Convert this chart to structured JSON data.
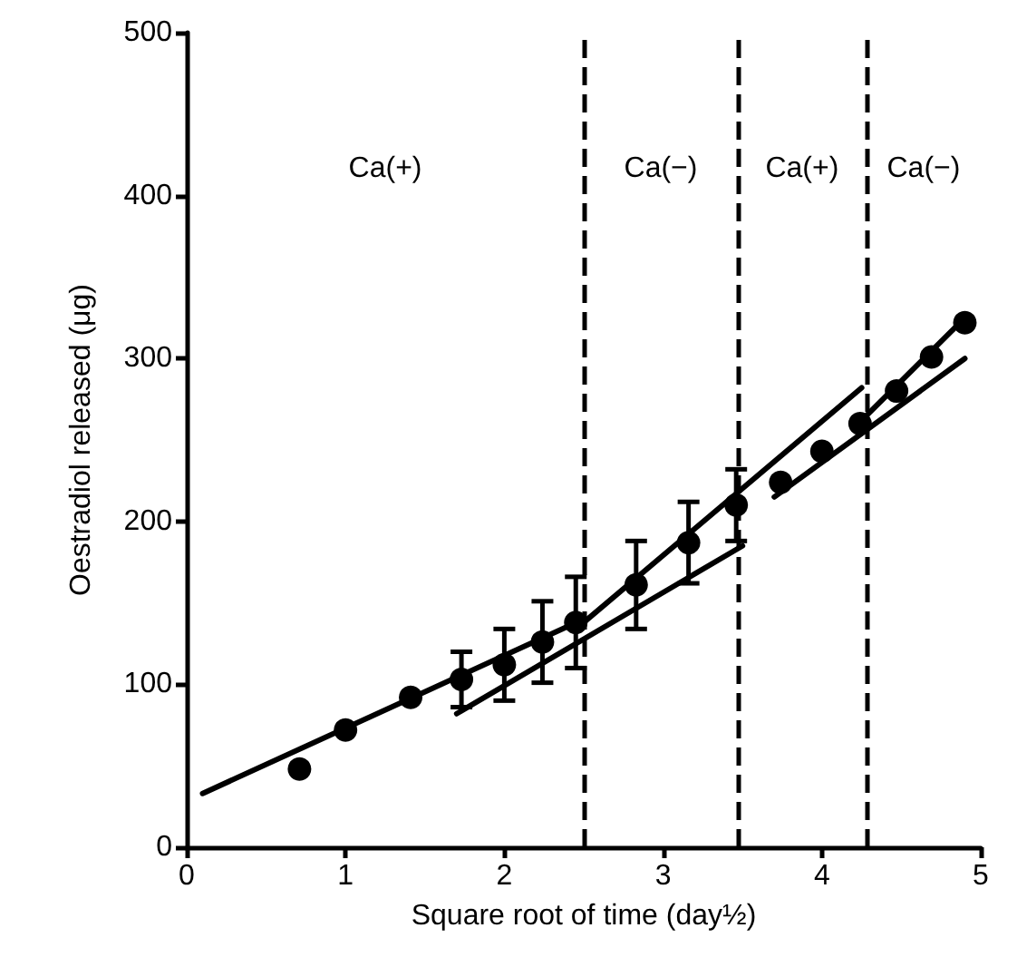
{
  "chart_data": {
    "type": "scatter",
    "xlabel": "Square root of time (day½)",
    "ylabel": "Oestradiol released (μg)",
    "xlim": [
      0,
      5
    ],
    "xticks": [
      0,
      1,
      2,
      3,
      4,
      5
    ],
    "ylim": [
      0,
      500
    ],
    "yticks": [
      0,
      100,
      200,
      300,
      400,
      500
    ],
    "grid": false,
    "series": [
      {
        "color": "#000000",
        "marker": "circle",
        "x": [
          0.71,
          1,
          1.41,
          1.73,
          2,
          2.24,
          2.45,
          2.83,
          3.16,
          3.46,
          3.74,
          4,
          4.24,
          4.47,
          4.69,
          4.9
        ],
        "values": [
          48,
          72,
          92,
          103,
          112,
          126,
          138,
          161,
          187,
          210,
          224,
          243,
          260,
          280,
          301,
          322
        ],
        "errors": [
          null,
          null,
          null,
          17,
          22,
          25,
          28,
          27,
          25,
          22,
          null,
          null,
          null,
          null,
          null,
          null
        ]
      },
      {
        "type": "line",
        "marker": "none",
        "color": "#000000",
        "x": [
          0.1,
          2.5
        ],
        "values": [
          33,
          140
        ]
      },
      {
        "type": "line",
        "marker": "none",
        "color": "#000000",
        "x": [
          1.7,
          3.5
        ],
        "values": [
          82,
          185
        ]
      },
      {
        "type": "line",
        "marker": "none",
        "color": "#000000",
        "x": [
          2.5,
          4.25
        ],
        "values": [
          138,
          282
        ]
      },
      {
        "type": "line",
        "marker": "none",
        "color": "#000000",
        "x": [
          3.7,
          4.9
        ],
        "values": [
          215,
          300
        ]
      },
      {
        "type": "line",
        "marker": "none",
        "color": "#000000",
        "x": [
          4.25,
          4.9
        ],
        "values": [
          262,
          325
        ]
      }
    ],
    "ref_lines": [
      {
        "axis": "x",
        "value": 2.5,
        "line_style": "dashed",
        "color": "#000000"
      },
      {
        "axis": "x",
        "value": 3.47,
        "line_style": "dashed",
        "color": "#000000"
      },
      {
        "axis": "x",
        "value": 4.28,
        "line_style": "dashed",
        "color": "#000000"
      }
    ],
    "annotations": [
      "Ca(+)",
      "Ca(−)",
      "Ca(+)",
      "Ca(−)"
    ]
  }
}
